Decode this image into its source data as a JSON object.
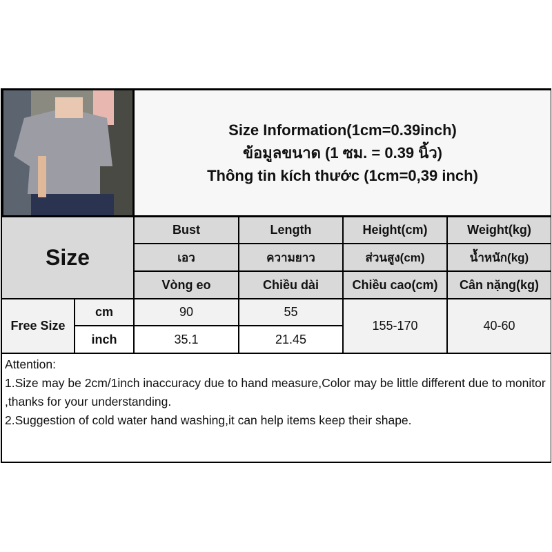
{
  "title": {
    "line1": "Size Information(1cm=0.39inch)",
    "line2": "ข้อมูลขนาด (1 ซม. = 0.39 นิ้ว)",
    "line3": "Thông tin kích thước (1cm=0,39 inch)"
  },
  "table": {
    "size_label": "Size",
    "columns": [
      {
        "en": "Bust",
        "th": "เอว",
        "vi": "Vòng eo"
      },
      {
        "en": "Length",
        "th": "ความยาว",
        "vi": "Chiều dài"
      },
      {
        "en": "Height(cm)",
        "th": "ส่วนสูง(cm)",
        "vi": "Chiều cao(cm)"
      },
      {
        "en": "Weight(kg)",
        "th": "น้ำหนัก(kg)",
        "vi": "Cân nặng(kg)"
      }
    ],
    "row_label": "Free Size",
    "cm": {
      "unit": "cm",
      "bust": "90",
      "length": "55"
    },
    "inch": {
      "unit": "inch",
      "bust": "35.1",
      "length": "21.45"
    },
    "height": "155-170",
    "weight": "40-60"
  },
  "attention": {
    "heading": "Attention:",
    "line1": "1.Size may be 2cm/1inch inaccuracy due to hand measure,Color may be little different due to monitor ,thanks for your understanding.",
    "line2": "2.Suggestion of cold water hand washing,it can help items keep their shape."
  }
}
